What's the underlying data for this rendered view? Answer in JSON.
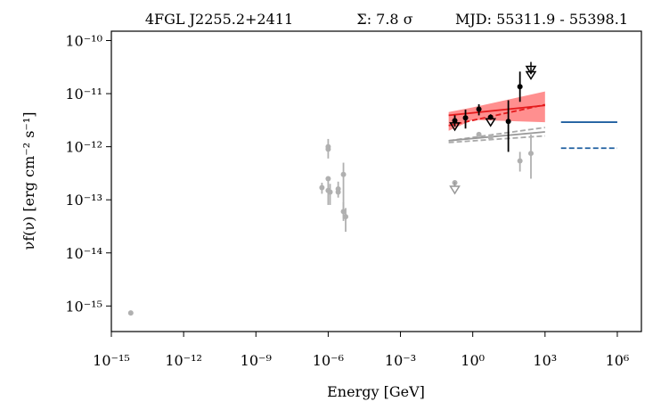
{
  "chart_data": {
    "type": "scatter",
    "title": "4FGL J2255.2+2411",
    "annotations": [
      "Σ: 7.8 σ",
      "MJD: 55311.9 - 55398.1"
    ],
    "x_label": "Energy [GeV]",
    "y_label": "νf(ν) [erg cm⁻² s⁻¹]",
    "log_x": true,
    "log_y": true,
    "xlim": [
      1e-15,
      10000000.0
    ],
    "ylim": [
      3.3e-16,
      1.5e-10
    ],
    "xticks": [
      {
        "value": 1e-15,
        "label": "10⁻¹⁵"
      },
      {
        "value": 1e-12,
        "label": "10⁻¹²"
      },
      {
        "value": 1e-09,
        "label": "10⁻⁹"
      },
      {
        "value": 1e-06,
        "label": "10⁻⁶"
      },
      {
        "value": 0.001,
        "label": "10⁻³"
      },
      {
        "value": 1,
        "label": "10⁰"
      },
      {
        "value": 1000,
        "label": "10³"
      },
      {
        "value": 1000000,
        "label": "10⁶"
      }
    ],
    "yticks": [
      {
        "value": 1e-15,
        "label": "10⁻¹⁵"
      },
      {
        "value": 1e-14,
        "label": "10⁻¹⁴"
      },
      {
        "value": 1e-13,
        "label": "10⁻¹³"
      },
      {
        "value": 1e-12,
        "label": "10⁻¹²"
      },
      {
        "value": 1e-11,
        "label": "10⁻¹¹"
      },
      {
        "value": 1e-10,
        "label": "10⁻¹⁰"
      }
    ],
    "series": [
      {
        "kind": "band",
        "color": "#ff6a6a",
        "x": [
          0.1,
          1,
          1000
        ],
        "y_low": [
          2e-12,
          3.2e-12,
          2.9e-12
        ],
        "y_high": [
          4.5e-12,
          5.5e-12,
          1.1e-11
        ]
      },
      {
        "kind": "line",
        "color": "#e41a1c",
        "dash": "solid",
        "x": [
          0.1,
          1000
        ],
        "y": [
          3.9e-12,
          6e-12
        ]
      },
      {
        "kind": "line",
        "color": "#e41a1c",
        "dash": "dashed",
        "x": [
          0.1,
          1000
        ],
        "y": [
          2.5e-12,
          6.2e-12
        ]
      },
      {
        "kind": "line",
        "color": "#aaaaaa",
        "dash": "dashed",
        "x": [
          0.1,
          1000
        ],
        "y": [
          1.3e-12,
          2.3e-12
        ]
      },
      {
        "kind": "line",
        "color": "#999999",
        "dash": "solid",
        "x": [
          0.1,
          1000
        ],
        "y": [
          1.3e-12,
          1.9e-12
        ]
      },
      {
        "kind": "line",
        "color": "#aaaaaa",
        "dash": "dashed",
        "x": [
          0.1,
          1000
        ],
        "y": [
          1.2e-12,
          1.6e-12
        ]
      },
      {
        "kind": "line",
        "color": "#1f5fa0",
        "dash": "solid",
        "x": [
          4600,
          1000000
        ],
        "y": [
          2.9e-12,
          2.9e-12
        ]
      },
      {
        "kind": "line",
        "color": "#1f5fa0",
        "dash": "dashed",
        "x": [
          4600,
          1000000
        ],
        "y": [
          9.4e-13,
          9.4e-13
        ]
      },
      {
        "kind": "points",
        "color": "#b0b0b0",
        "x": [
          6.4e-15,
          5.5e-07,
          1e-06,
          1e-06,
          1e-06,
          1e-06,
          1.2e-06,
          2.6e-06,
          2.6e-06,
          4.3e-06,
          4.3e-06,
          5.3e-06,
          1.8,
          5.5,
          91,
          260,
          0.18
        ],
        "y": [
          7.4e-16,
          1.7e-13,
          1e-12,
          9e-13,
          2.5e-13,
          1.5e-13,
          1.4e-13,
          1.6e-13,
          1.4e-13,
          3e-13,
          6e-14,
          4.8e-14,
          1.7e-12,
          1.5e-12,
          5.4e-13,
          7.5e-13,
          2.1e-13
        ],
        "y_low": [
          null,
          1.3e-13,
          6e-13,
          null,
          null,
          8e-14,
          8e-14,
          1.1e-13,
          null,
          4.5e-14,
          4e-14,
          2.5e-14,
          null,
          null,
          3.4e-13,
          2.5e-13,
          null
        ],
        "y_high": [
          null,
          2.1e-13,
          1.4e-12,
          null,
          null,
          2.3e-13,
          2e-13,
          2.2e-13,
          null,
          5e-13,
          9e-14,
          7e-14,
          null,
          null,
          8e-13,
          1.7e-12,
          null
        ]
      },
      {
        "kind": "upper_limit",
        "color": "#999999",
        "x": [
          0.18
        ],
        "y": [
          1.6e-13
        ]
      },
      {
        "kind": "points",
        "color": "#000000",
        "x": [
          0.18,
          0.5,
          1.8,
          5.5,
          30,
          91
        ],
        "y": [
          3.1e-12,
          3.5e-12,
          5.1e-12,
          3.6e-12,
          3e-12,
          1.35e-11
        ],
        "y_low": [
          2.4e-12,
          2.2e-12,
          3.9e-12,
          null,
          8e-13,
          7e-12
        ],
        "y_high": [
          3.9e-12,
          5e-12,
          6.3e-12,
          null,
          7.5e-12,
          2.6e-11
        ]
      },
      {
        "kind": "upper_limit",
        "color": "#000000",
        "x": [
          0.18,
          5.5,
          260,
          260
        ],
        "y": [
          2.5e-12,
          3e-12,
          2.9e-11,
          2.3e-11
        ]
      }
    ]
  }
}
